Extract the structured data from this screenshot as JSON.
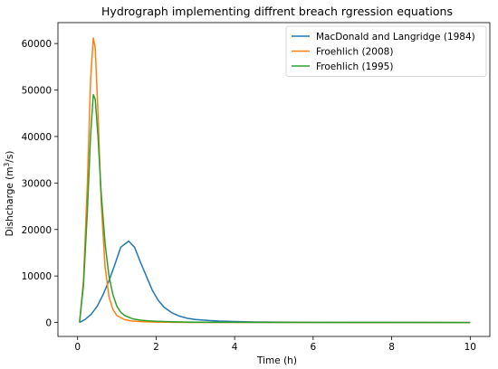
{
  "chart_data": {
    "type": "line",
    "title": "Hydrograph implementing diffrent breach rgression equations",
    "xlabel": "Time (h)",
    "ylabel_prefix": "Dishcharge (m",
    "ylabel_sup": "3",
    "ylabel_suffix": "/s)",
    "xlim": [
      -0.5,
      10.5
    ],
    "ylim": [
      -3000,
      64500
    ],
    "xticks": [
      0,
      2,
      4,
      6,
      8,
      10
    ],
    "yticks": [
      0,
      10000,
      20000,
      30000,
      40000,
      50000,
      60000
    ],
    "legend_position": "top-right",
    "grid": false,
    "series": [
      {
        "name": "MacDonald and Langridge (1984)",
        "color": "#1f77b4",
        "x": [
          0.05,
          0.2,
          0.35,
          0.5,
          0.65,
          0.8,
          0.95,
          1.1,
          1.3,
          1.45,
          1.6,
          1.75,
          1.9,
          2.05,
          2.2,
          2.4,
          2.6,
          2.8,
          3.0,
          3.3,
          3.6,
          4.0,
          4.5,
          5.0,
          6.0,
          7.0,
          8.0,
          9.0,
          10.0
        ],
        "y": [
          0,
          700,
          1800,
          3500,
          6000,
          9000,
          12500,
          16200,
          17500,
          16200,
          13000,
          10000,
          7000,
          4800,
          3300,
          2100,
          1350,
          900,
          650,
          450,
          300,
          200,
          120,
          80,
          40,
          20,
          10,
          5,
          0
        ]
      },
      {
        "name": "Froehlich (2008)",
        "color": "#ff7f0e",
        "x": [
          0.05,
          0.15,
          0.25,
          0.33,
          0.4,
          0.45,
          0.52,
          0.6,
          0.7,
          0.8,
          0.9,
          1.0,
          1.2,
          1.4,
          1.7,
          2.0,
          2.5,
          3.0,
          4.0,
          5.0,
          6.0,
          8.0,
          10.0
        ],
        "y": [
          0,
          9000,
          30000,
          52000,
          61200,
          59000,
          45000,
          26000,
          12000,
          5500,
          2800,
          1500,
          600,
          300,
          150,
          80,
          40,
          20,
          10,
          5,
          3,
          1,
          0
        ]
      },
      {
        "name": "Froehlich (1995)",
        "color": "#2ca02c",
        "x": [
          0.05,
          0.15,
          0.25,
          0.33,
          0.4,
          0.45,
          0.52,
          0.6,
          0.7,
          0.8,
          0.9,
          1.0,
          1.1,
          1.2,
          1.4,
          1.6,
          1.8,
          2.0,
          2.5,
          3.0,
          4.0,
          5.0,
          6.0,
          8.0,
          10.0
        ],
        "y": [
          0,
          8000,
          24000,
          40000,
          49000,
          48000,
          40000,
          28000,
          17000,
          10000,
          6000,
          3500,
          2200,
          1500,
          800,
          500,
          350,
          250,
          130,
          70,
          30,
          15,
          8,
          3,
          0
        ]
      }
    ]
  }
}
